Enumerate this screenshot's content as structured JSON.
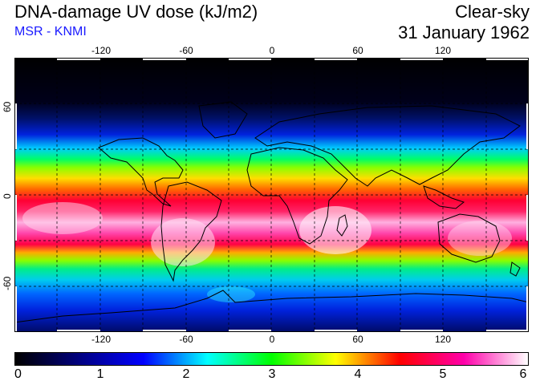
{
  "header": {
    "title": "DNA-damage UV dose (kJ/m2)",
    "source": "MSR - KNMI",
    "condition": "Clear-sky",
    "date": "31 January 1962",
    "source_color": "#1a1aff"
  },
  "map": {
    "lon_ticks": [
      "-120",
      "-60",
      "0",
      "60",
      "120"
    ],
    "lat_ticks": [
      "60",
      "0",
      "-60"
    ],
    "gridlines": "dashed"
  },
  "colorbar": {
    "ticks": [
      "0",
      "1",
      "2",
      "3",
      "4",
      "5",
      "6"
    ],
    "min": 0,
    "max": 6,
    "stops": [
      "#000000",
      "#000080",
      "#0000ff",
      "#00ffff",
      "#00ff00",
      "#ffff00",
      "#ff0000",
      "#ff00aa",
      "#ffffff"
    ]
  }
}
